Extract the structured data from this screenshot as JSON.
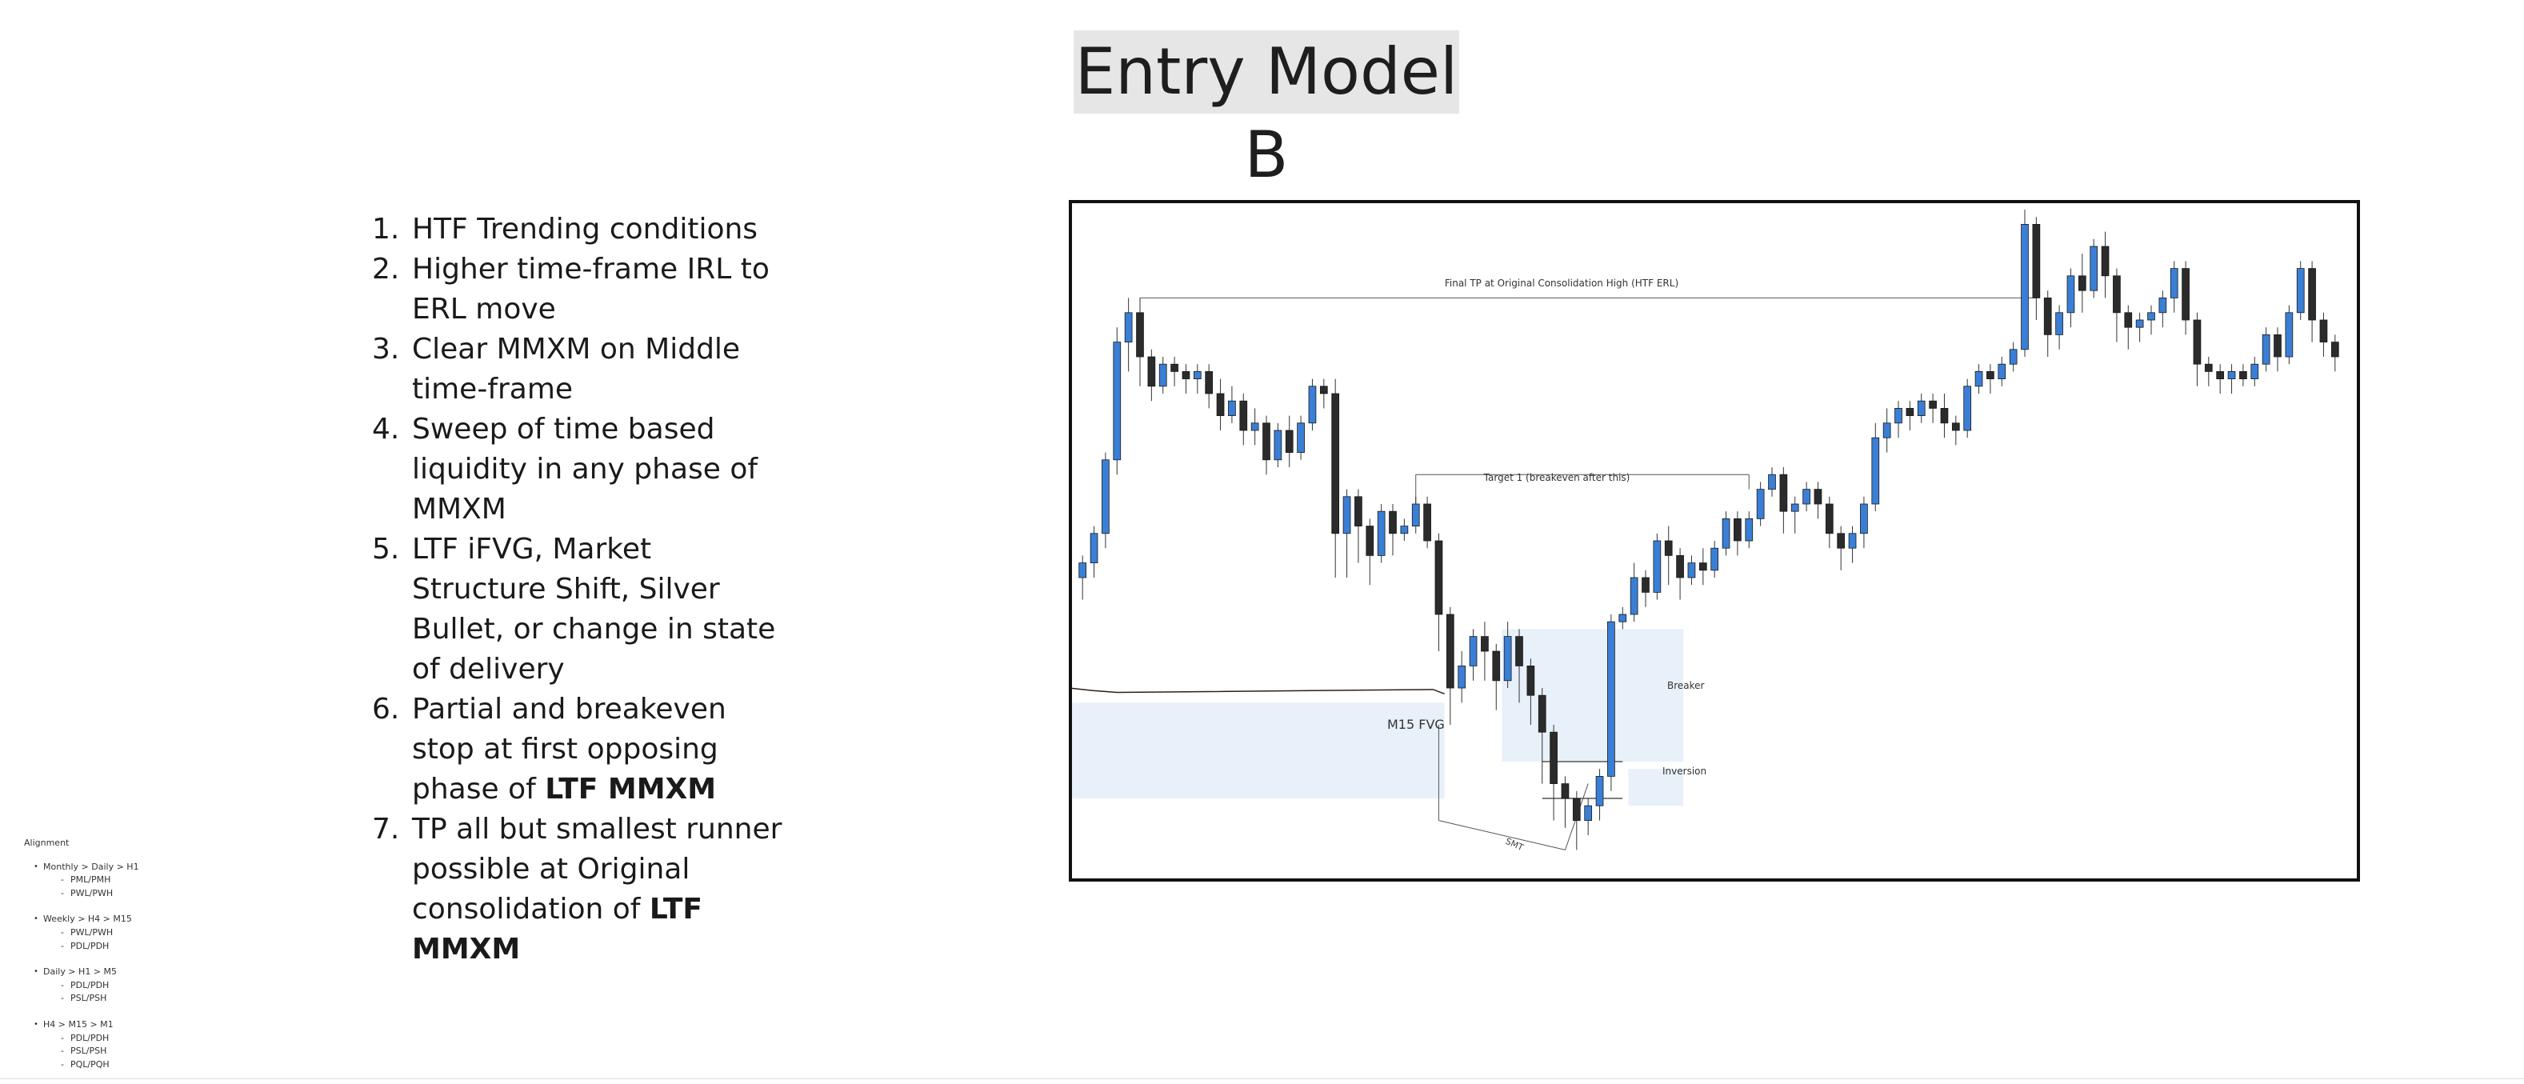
{
  "title": "Entry Model B",
  "steps": [
    {
      "num": "1.",
      "text": "HTF Trending conditions",
      "bold": ""
    },
    {
      "num": "2.",
      "text": "Higher time-frame IRL to ERL move",
      "bold": ""
    },
    {
      "num": "3.",
      "text": "Clear MMXM on Middle time-frame",
      "bold": ""
    },
    {
      "num": "4.",
      "text": "Sweep of time based liquidity in any phase of MMXM",
      "bold": ""
    },
    {
      "num": "5.",
      "text": "LTF iFVG, Market Structure Shift, Silver Bullet, or change in state of delivery",
      "bold": ""
    },
    {
      "num": "6.",
      "text": "Partial and breakeven stop at first opposing phase of ",
      "bold": "LTF MMXM"
    },
    {
      "num": "7.",
      "text": "TP all but smallest runner possible at Original consolidation of ",
      "bold": "LTF MMXM"
    }
  ],
  "alignment": {
    "heading": "Alignment",
    "groups": [
      {
        "label": "Monthly > Daily > H1",
        "items": [
          "PML/PMH",
          "PWL/PWH"
        ]
      },
      {
        "label": "Weekly > H4 > M15",
        "items": [
          "PWL/PWH",
          "PDL/PDH"
        ]
      },
      {
        "label": "Daily > H1 > M5",
        "items": [
          "PDL/PDH",
          "PSL/PSH"
        ]
      },
      {
        "label": "H4 > M15 > M1",
        "items": [
          "PDL/PDH",
          "PSL/PSH",
          "PQL/PQH"
        ]
      }
    ]
  },
  "chart_data": {
    "type": "candlestick",
    "colors": {
      "bull": "#3a7fd5",
      "bear": "#2b2b2b",
      "zone": "#e8f0fa",
      "frame": "#111111"
    },
    "annotations": {
      "final_tp": "Final TP at Original Consolidation High (HTF ERL)",
      "target1": "Target 1 (breakeven after this)",
      "fvg": "M15 FVG",
      "breaker": "Breaker",
      "inversion": "Inversion",
      "smt": "SMT"
    },
    "candles": [
      [
        50,
        52,
        47,
        53
      ],
      [
        52,
        56,
        50,
        57
      ],
      [
        56,
        66,
        54,
        67
      ],
      [
        66,
        82,
        64,
        84
      ],
      [
        82,
        86,
        78,
        88
      ],
      [
        86,
        80,
        76,
        88
      ],
      [
        80,
        76,
        74,
        81
      ],
      [
        76,
        79,
        75,
        80
      ],
      [
        79,
        78,
        76,
        80
      ],
      [
        78,
        77,
        75,
        79
      ],
      [
        77,
        78,
        75,
        79
      ],
      [
        78,
        75,
        73,
        79
      ],
      [
        75,
        72,
        70,
        77
      ],
      [
        72,
        74,
        71,
        76
      ],
      [
        74,
        70,
        68,
        75
      ],
      [
        70,
        71,
        68,
        73
      ],
      [
        71,
        66,
        64,
        72
      ],
      [
        66,
        70,
        65,
        71
      ],
      [
        70,
        67,
        65,
        72
      ],
      [
        67,
        71,
        66,
        72
      ],
      [
        71,
        76,
        70,
        77
      ],
      [
        76,
        75,
        73,
        77
      ],
      [
        75,
        56,
        50,
        77
      ],
      [
        56,
        61,
        50,
        62
      ],
      [
        61,
        57,
        52,
        62
      ],
      [
        57,
        53,
        49,
        58
      ],
      [
        53,
        59,
        52,
        60
      ],
      [
        59,
        56,
        53,
        60
      ],
      [
        56,
        57,
        55,
        58
      ],
      [
        57,
        60,
        56,
        61
      ],
      [
        60,
        55,
        54,
        61
      ],
      [
        55,
        45,
        40,
        56
      ],
      [
        45,
        35,
        30,
        46
      ],
      [
        35,
        38,
        33,
        40
      ],
      [
        38,
        42,
        36,
        43
      ],
      [
        42,
        40,
        36,
        44
      ],
      [
        40,
        36,
        32,
        41
      ],
      [
        36,
        42,
        35,
        44
      ],
      [
        42,
        38,
        33,
        43
      ],
      [
        38,
        34,
        30,
        39
      ],
      [
        34,
        29,
        22,
        35
      ],
      [
        29,
        22,
        17,
        30
      ],
      [
        22,
        20,
        16,
        23
      ],
      [
        20,
        17,
        13,
        21
      ],
      [
        17,
        19,
        15,
        20
      ],
      [
        19,
        23,
        17,
        24
      ],
      [
        23,
        44,
        21,
        45
      ],
      [
        44,
        45,
        43,
        46
      ],
      [
        45,
        50,
        44,
        52
      ],
      [
        50,
        48,
        46,
        51
      ],
      [
        48,
        55,
        47,
        56
      ],
      [
        55,
        53,
        49,
        57
      ],
      [
        53,
        50,
        47,
        54
      ],
      [
        50,
        52,
        49,
        53
      ],
      [
        52,
        51,
        49,
        54
      ],
      [
        51,
        54,
        50,
        55
      ],
      [
        54,
        58,
        53,
        59
      ],
      [
        58,
        55,
        53,
        59
      ],
      [
        55,
        58,
        54,
        59
      ],
      [
        58,
        62,
        57,
        63
      ],
      [
        62,
        64,
        61,
        65
      ],
      [
        64,
        59,
        56,
        65
      ],
      [
        59,
        60,
        56,
        61
      ],
      [
        60,
        62,
        59,
        63
      ],
      [
        62,
        60,
        58,
        63
      ],
      [
        60,
        56,
        54,
        61
      ],
      [
        56,
        54,
        51,
        57
      ],
      [
        54,
        56,
        52,
        57
      ],
      [
        56,
        60,
        54,
        61
      ],
      [
        60,
        69,
        59,
        71
      ],
      [
        69,
        71,
        67,
        73
      ],
      [
        71,
        73,
        69,
        74
      ],
      [
        73,
        72,
        70,
        74
      ],
      [
        72,
        74,
        71,
        75
      ],
      [
        74,
        73,
        71,
        75
      ],
      [
        73,
        71,
        69,
        75
      ],
      [
        71,
        70,
        68,
        72
      ],
      [
        70,
        76,
        69,
        77
      ],
      [
        76,
        78,
        75,
        79
      ],
      [
        78,
        77,
        75,
        79
      ],
      [
        77,
        79,
        76,
        80
      ],
      [
        79,
        81,
        78,
        82
      ],
      [
        81,
        98,
        80,
        100
      ],
      [
        98,
        88,
        85,
        99
      ],
      [
        88,
        83,
        80,
        89
      ],
      [
        83,
        86,
        81,
        87
      ],
      [
        86,
        91,
        84,
        92
      ],
      [
        91,
        89,
        86,
        94
      ],
      [
        89,
        95,
        88,
        96
      ],
      [
        95,
        91,
        88,
        97
      ],
      [
        91,
        86,
        82,
        92
      ],
      [
        86,
        84,
        81,
        87
      ],
      [
        84,
        85,
        82,
        86
      ],
      [
        85,
        86,
        83,
        87
      ],
      [
        86,
        88,
        84,
        89
      ],
      [
        88,
        92,
        86,
        93
      ],
      [
        92,
        85,
        83,
        93
      ],
      [
        85,
        79,
        76,
        86
      ],
      [
        79,
        78,
        76,
        80
      ],
      [
        78,
        77,
        75,
        79
      ],
      [
        77,
        78,
        75,
        79
      ],
      [
        78,
        77,
        76,
        79
      ],
      [
        77,
        79,
        76,
        80
      ],
      [
        79,
        83,
        78,
        84
      ],
      [
        83,
        80,
        78,
        84
      ],
      [
        80,
        86,
        79,
        87
      ],
      [
        86,
        92,
        85,
        93
      ],
      [
        92,
        85,
        82,
        93
      ],
      [
        85,
        82,
        80,
        86
      ],
      [
        82,
        80,
        78,
        83
      ]
    ]
  }
}
